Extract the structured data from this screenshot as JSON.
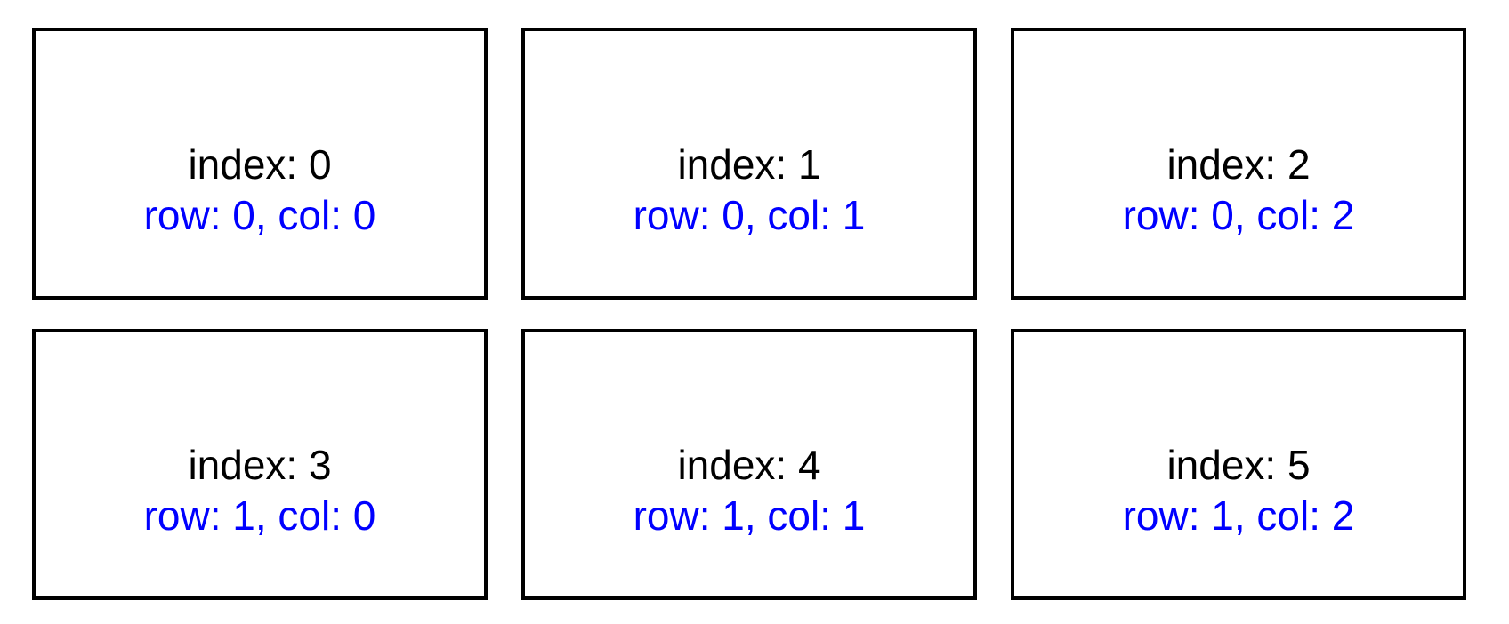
{
  "figure": {
    "grid": {
      "rows": 2,
      "cols": 3
    },
    "colors": {
      "background": "#ffffff",
      "border": "#000000",
      "index_text": "#000000",
      "rowcol_text": "#0000ff"
    },
    "cells": [
      {
        "index_label": "index: 0",
        "rowcol_label": "row: 0, col: 0"
      },
      {
        "index_label": "index: 1",
        "rowcol_label": "row: 0, col: 1"
      },
      {
        "index_label": "index: 2",
        "rowcol_label": "row: 0, col: 2"
      },
      {
        "index_label": "index: 3",
        "rowcol_label": "row: 1, col: 0"
      },
      {
        "index_label": "index: 4",
        "rowcol_label": "row: 1, col: 1"
      },
      {
        "index_label": "index: 5",
        "rowcol_label": "row: 1, col: 2"
      }
    ]
  }
}
